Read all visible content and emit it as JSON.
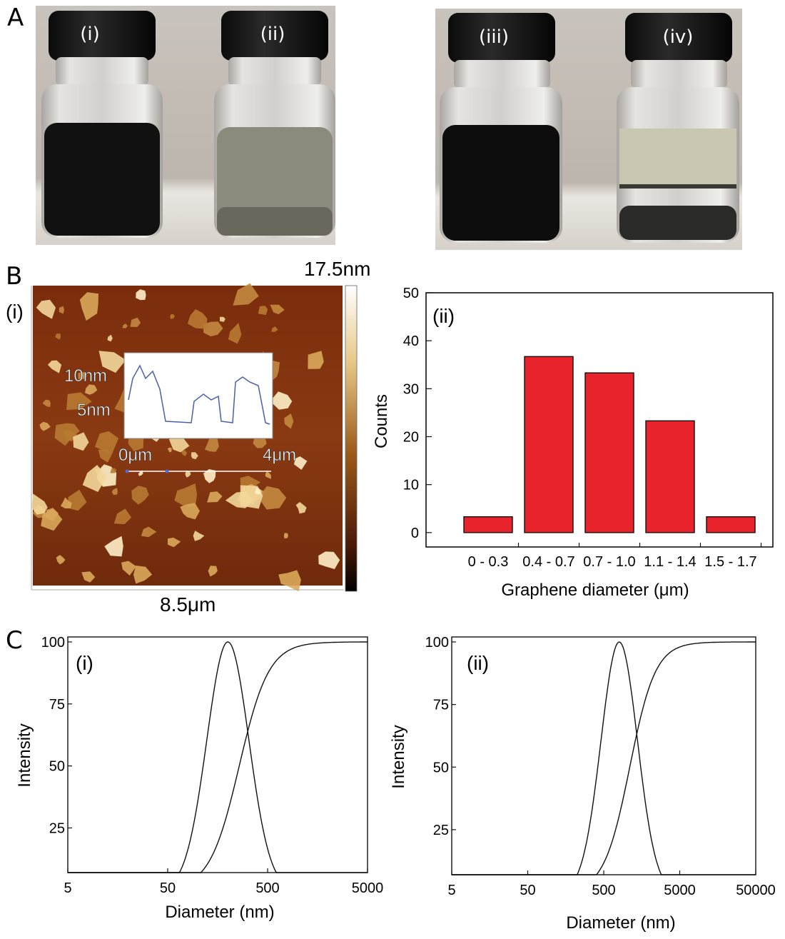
{
  "panel_labels": {
    "a": "A",
    "b": "B",
    "c": "C"
  },
  "vials": [
    "(i)",
    "(ii)",
    "(iii)",
    "(iv)"
  ],
  "afm": {
    "sub_label": "(i)",
    "colorbar_max": "17.5nm",
    "scale_width": "8.5μm",
    "profile": {
      "y_labels": [
        "10nm",
        "5nm"
      ],
      "x_labels": [
        "0μm",
        "4μm"
      ]
    }
  },
  "colors": {
    "bar_fill": "#e8232b",
    "line": "#111111",
    "profile_line": "#4a5fa8"
  },
  "chart_data": [
    {
      "type": "bar",
      "sub_label": "(ii)",
      "categories": [
        "0 - 0.3",
        "0.4 - 0.7",
        "0.7 - 1.0",
        "1.1 - 1.4",
        "1.5 - 1.7"
      ],
      "values": [
        3.3,
        36.7,
        33.3,
        23.3,
        3.3
      ],
      "ylim": [
        -3,
        50
      ],
      "yticks": [
        0,
        10,
        20,
        30,
        40,
        50
      ],
      "ylabel": "Counts",
      "xlabel": "Graphene diameter (μm)"
    },
    {
      "type": "line",
      "sub_label": "(i)",
      "xscale": "log",
      "xlim": [
        5,
        5000
      ],
      "xticks": [
        "5",
        "50",
        "500",
        "5000"
      ],
      "yticks": [
        "100",
        "75",
        "50",
        "25"
      ],
      "ylim": [
        7,
        102
      ],
      "ylabel": "Intensity",
      "xlabel": "Diameter (nm)",
      "series": [
        {
          "kind": "distribution",
          "peak_x": 200,
          "peak_y": 100,
          "log_sigma": 0.21
        },
        {
          "kind": "cumulative",
          "mid_x": 260,
          "log_sigma": 0.21
        }
      ]
    },
    {
      "type": "line",
      "sub_label": "(ii)",
      "xscale": "log",
      "xlim": [
        5,
        50000
      ],
      "xticks": [
        "5",
        "50",
        "500",
        "5000",
        "50000"
      ],
      "yticks": [
        "100",
        "75",
        "50",
        "25"
      ],
      "ylim": [
        7,
        102
      ],
      "ylabel": "Intensity",
      "xlabel": "Diameter (nm)",
      "series": [
        {
          "kind": "distribution",
          "peak_x": 800,
          "peak_y": 100,
          "log_sigma": 0.24
        },
        {
          "kind": "cumulative",
          "mid_x": 1100,
          "log_sigma": 0.24
        }
      ]
    }
  ]
}
